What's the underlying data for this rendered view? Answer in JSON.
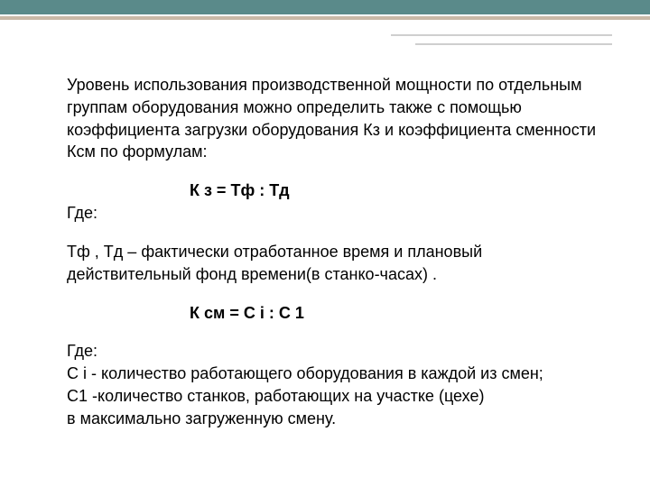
{
  "theme": {
    "bar_color": "#5a8a8a",
    "accent_color": "#c9b9a7",
    "decor_color": "#cfcfcf",
    "text_color": "#000000",
    "background": "#ffffff",
    "body_fontsize": 18
  },
  "intro": "Уровень использования производственной мощности по отдельным группам оборудования можно определить также с помощью коэффициента загрузки оборудования Кз и коэффициента сменности Ксм по формулам:",
  "formula1": {
    "text": "К з = Тф : Тд",
    "where_label": "Где:"
  },
  "definition1": "Тф , Тд – фактически отработанное время и плановый действительный фонд времени(в станко-часах) .",
  "formula2": {
    "text": "К см = С i : С 1"
  },
  "definition2": {
    "where_label": "Где:",
    "line1": "С i - количество работающего оборудования в каждой из смен;",
    "line2": "С1 -количество станков, работающих на участке (цехе)",
    "line3": "в максимально загруженную смену."
  }
}
